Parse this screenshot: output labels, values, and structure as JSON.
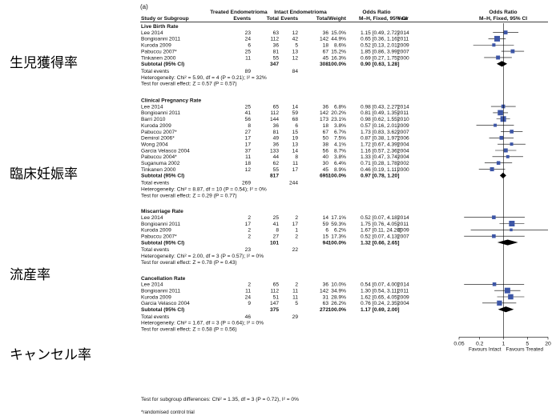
{
  "panel_label": "(a)",
  "japanese_labels": [
    "生児獲得率",
    "臨床妊娠率",
    "流産率",
    "キャンセル率"
  ],
  "header": {
    "treated_group": "Treated Endometrioma",
    "intact_group": "Intact Endometrioma",
    "study_col": "Study or Subgroup",
    "events": "Events",
    "total": "Total",
    "weight": "Weight",
    "or_title": "Odds Ratio",
    "or_method": "M–H, Fixed, 95% CI",
    "year": "Year",
    "plot_title": "Odds Ratio",
    "plot_method": "M–H, Fixed, 95% CI"
  },
  "chart_data": {
    "type": "forest",
    "x_scale": "log",
    "xlim": [
      0.05,
      20
    ],
    "x_ticks": [
      "0.05",
      "0.2",
      "1",
      "5",
      "20"
    ],
    "favours_left": "Favours Intact",
    "favours_right": "Favours Treated",
    "subgroups": [
      {
        "name": "Live Birth Rate",
        "studies": [
          {
            "study": "Lee 2014",
            "te": "23",
            "tt": "63",
            "ie": "12",
            "it": "36",
            "w": "15.0%",
            "ci": "1.15 [0.49, 2.72]",
            "year": "2014",
            "or": 1.15,
            "lo": 0.49,
            "hi": 2.72,
            "weight": 15.0
          },
          {
            "study": "Bongioanni 2011",
            "te": "24",
            "tt": "112",
            "ie": "42",
            "it": "142",
            "w": "44.9%",
            "ci": "0.65 [0.36, 1.16]",
            "year": "2011",
            "or": 0.65,
            "lo": 0.36,
            "hi": 1.16,
            "weight": 44.9
          },
          {
            "study": "Kuroda 2009",
            "te": "6",
            "tt": "36",
            "ie": "5",
            "it": "18",
            "w": "8.6%",
            "ci": "0.52 [0.13, 2.01]",
            "year": "2009",
            "or": 0.52,
            "lo": 0.13,
            "hi": 2.01,
            "weight": 8.6
          },
          {
            "study": "Pabuccu 2007*",
            "te": "25",
            "tt": "81",
            "ie": "13",
            "it": "67",
            "w": "15.2%",
            "ci": "1.85 [0.86, 3.99]",
            "year": "2007",
            "or": 1.85,
            "lo": 0.86,
            "hi": 3.99,
            "weight": 15.2
          },
          {
            "study": "Tinkanen 2000",
            "te": "11",
            "tt": "55",
            "ie": "12",
            "it": "45",
            "w": "16.3%",
            "ci": "0.69 [0.27, 1.75]",
            "year": "2000",
            "or": 0.69,
            "lo": 0.27,
            "hi": 1.75,
            "weight": 16.3
          }
        ],
        "subtotal": {
          "label": "Subtotal (95% CI)",
          "tt": "347",
          "it": "308",
          "w": "100.0%",
          "ci": "0.90 [0.63, 1.28]",
          "or": 0.9,
          "lo": 0.63,
          "hi": 1.28
        },
        "total_events": {
          "label": "Total events",
          "te": "89",
          "ie": "84"
        },
        "heterogeneity": "Heterogeneity: Chi² = 5.90, df = 4 (P = 0.21); I² = 32%",
        "overall_effect": "Test for overall effect: Z = 0.57 (P = 0.57)"
      },
      {
        "name": "Clinical Pregnancy Rate",
        "studies": [
          {
            "study": "Lee 2014",
            "te": "25",
            "tt": "65",
            "ie": "14",
            "it": "36",
            "w": "6.8%",
            "ci": "0.98 [0.43, 2.27]",
            "year": "2014",
            "or": 0.98,
            "lo": 0.43,
            "hi": 2.27,
            "weight": 6.8
          },
          {
            "study": "Bongioanni 2011",
            "te": "41",
            "tt": "112",
            "ie": "59",
            "it": "142",
            "w": "20.2%",
            "ci": "0.81 [0.49, 1.35]",
            "year": "2011",
            "or": 0.81,
            "lo": 0.49,
            "hi": 1.35,
            "weight": 20.2
          },
          {
            "study": "Barri 2010",
            "te": "56",
            "tt": "144",
            "ie": "68",
            "it": "173",
            "w": "23.1%",
            "ci": "0.98 [0.62, 1.55]",
            "year": "2010",
            "or": 0.98,
            "lo": 0.62,
            "hi": 1.55,
            "weight": 23.1
          },
          {
            "study": "Kuroda 2009",
            "te": "8",
            "tt": "36",
            "ie": "6",
            "it": "18",
            "w": "3.8%",
            "ci": "0.57 [0.16, 2.01]",
            "year": "2009",
            "or": 0.57,
            "lo": 0.16,
            "hi": 2.01,
            "weight": 3.8
          },
          {
            "study": "Pabuccu 2007*",
            "te": "27",
            "tt": "81",
            "ie": "15",
            "it": "67",
            "w": "6.7%",
            "ci": "1.73 [0.83, 3.62]",
            "year": "2007",
            "or": 1.73,
            "lo": 0.83,
            "hi": 3.62,
            "weight": 6.7
          },
          {
            "study": "Demirol 2006*",
            "te": "17",
            "tt": "49",
            "ie": "19",
            "it": "50",
            "w": "7.5%",
            "ci": "0.87 [0.38, 1.97]",
            "year": "2006",
            "or": 0.87,
            "lo": 0.38,
            "hi": 1.97,
            "weight": 7.5
          },
          {
            "study": "Wong 2004",
            "te": "17",
            "tt": "36",
            "ie": "13",
            "it": "38",
            "w": "4.1%",
            "ci": "1.72 [0.67, 4.39]",
            "year": "2004",
            "or": 1.72,
            "lo": 0.67,
            "hi": 4.39,
            "weight": 4.1
          },
          {
            "study": "Garcia Velasco 2004",
            "te": "37",
            "tt": "133",
            "ie": "14",
            "it": "56",
            "w": "8.7%",
            "ci": "1.16 [0.57, 2.36]",
            "year": "2004",
            "or": 1.16,
            "lo": 0.57,
            "hi": 2.36,
            "weight": 8.7
          },
          {
            "study": "Pabuccu 2004*",
            "te": "11",
            "tt": "44",
            "ie": "8",
            "it": "40",
            "w": "3.8%",
            "ci": "1.33 [0.47, 3.74]",
            "year": "2004",
            "or": 1.33,
            "lo": 0.47,
            "hi": 3.74,
            "weight": 3.8
          },
          {
            "study": "Suganuma 2002",
            "te": "18",
            "tt": "62",
            "ie": "11",
            "it": "30",
            "w": "6.4%",
            "ci": "0.71 [0.28, 1.78]",
            "year": "2002",
            "or": 0.71,
            "lo": 0.28,
            "hi": 1.78,
            "weight": 6.4
          },
          {
            "study": "Tinkanen 2000",
            "te": "12",
            "tt": "55",
            "ie": "17",
            "it": "45",
            "w": "8.9%",
            "ci": "0.46 [0.19, 1.11]",
            "year": "2000",
            "or": 0.46,
            "lo": 0.19,
            "hi": 1.11,
            "weight": 8.9
          }
        ],
        "subtotal": {
          "label": "Subtotal (95% CI)",
          "tt": "817",
          "it": "695",
          "w": "100.0%",
          "ci": "0.97 [0.78, 1.20]",
          "or": 0.97,
          "lo": 0.78,
          "hi": 1.2
        },
        "total_events": {
          "label": "Total events",
          "te": "269",
          "ie": "244"
        },
        "heterogeneity": "Heterogeneity: Chi² = 8.87, df = 10 (P = 0.54); I² = 0%",
        "overall_effect": "Test for overall effect: Z = 0.29 (P = 0.77)"
      },
      {
        "name": "Miscarriage Rate",
        "studies": [
          {
            "study": "Lee 2014",
            "te": "2",
            "tt": "25",
            "ie": "2",
            "it": "14",
            "w": "17.1%",
            "ci": "0.52 [0.07, 4.18]",
            "year": "2014",
            "or": 0.52,
            "lo": 0.07,
            "hi": 4.18,
            "weight": 17.1
          },
          {
            "study": "Bongioanni 2011",
            "te": "17",
            "tt": "41",
            "ie": "17",
            "it": "59",
            "w": "59.3%",
            "ci": "1.75 [0.76, 4.05]",
            "year": "2011",
            "or": 1.75,
            "lo": 0.76,
            "hi": 4.05,
            "weight": 59.3
          },
          {
            "study": "Kuroda 2009",
            "te": "2",
            "tt": "8",
            "ie": "1",
            "it": "6",
            "w": "6.2%",
            "ci": "1.67 [0.11, 24.26]",
            "year": "2009",
            "or": 1.67,
            "lo": 0.11,
            "hi": 24.26,
            "weight": 6.2
          },
          {
            "study": "Pabuccu 2007*",
            "te": "2",
            "tt": "27",
            "ie": "2",
            "it": "15",
            "w": "17.3%",
            "ci": "0.52 [0.07, 4.13]",
            "year": "2007",
            "or": 0.52,
            "lo": 0.07,
            "hi": 4.13,
            "weight": 17.3
          }
        ],
        "subtotal": {
          "label": "Subtotal (95% CI)",
          "tt": "101",
          "it": "94",
          "w": "100.0%",
          "ci": "1.32 [0.66, 2.65]",
          "or": 1.32,
          "lo": 0.66,
          "hi": 2.65
        },
        "total_events": {
          "label": "Total events",
          "te": "23",
          "ie": "22"
        },
        "heterogeneity": "Heterogeneity: Chi² = 2.00, df = 3 (P = 0.57); I² = 0%",
        "overall_effect": "Test for overall effect: Z = 0.78 (P = 0.43)"
      },
      {
        "name": "Cancellation Rate",
        "studies": [
          {
            "study": "Lee 2014",
            "te": "2",
            "tt": "65",
            "ie": "2",
            "it": "36",
            "w": "10.0%",
            "ci": "0.54 [0.07, 4.00]",
            "year": "2014",
            "or": 0.54,
            "lo": 0.07,
            "hi": 4.0,
            "weight": 10.0
          },
          {
            "study": "Bongioanni 2011",
            "te": "11",
            "tt": "112",
            "ie": "11",
            "it": "142",
            "w": "34.9%",
            "ci": "1.30 [0.54, 3.11]",
            "year": "2011",
            "or": 1.3,
            "lo": 0.54,
            "hi": 3.11,
            "weight": 34.9
          },
          {
            "study": "Kuroda 2009",
            "te": "24",
            "tt": "51",
            "ie": "11",
            "it": "31",
            "w": "28.9%",
            "ci": "1.62 [0.65, 4.05]",
            "year": "2009",
            "or": 1.62,
            "lo": 0.65,
            "hi": 4.05,
            "weight": 28.9
          },
          {
            "study": "Garcia Velasco 2004",
            "te": "9",
            "tt": "147",
            "ie": "5",
            "it": "63",
            "w": "26.2%",
            "ci": "0.76 [0.24, 2.35]",
            "year": "2004",
            "or": 0.76,
            "lo": 0.24,
            "hi": 2.35,
            "weight": 26.2
          }
        ],
        "subtotal": {
          "label": "Subtotal (95% CI)",
          "tt": "375",
          "it": "272",
          "w": "100.0%",
          "ci": "1.17 [0.69, 2.00]",
          "or": 1.17,
          "lo": 0.69,
          "hi": 2.0
        },
        "total_events": {
          "label": "Total events",
          "te": "46",
          "ie": "29"
        },
        "heterogeneity": "Heterogeneity: Chi² = 1.67, df = 3 (P = 0.64); I² = 0%",
        "overall_effect": "Test for overall effect: Z = 0.58 (P = 0.56)"
      }
    ],
    "subgroup_differences": "Test for subgroup differences: Chi² = 1.35, df = 3 (P = 0.72), I² = 0%",
    "footnote": "*randomised control trial",
    "colors": {
      "square": "#3d56a6",
      "diamond": "#000000",
      "line": "#000000"
    }
  }
}
